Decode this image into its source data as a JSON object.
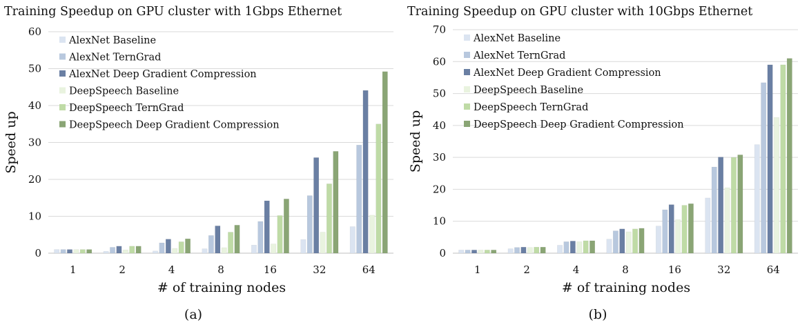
{
  "chart_data": [
    {
      "type": "bar",
      "title": "Training Speedup on GPU cluster with 1Gbps Ethernet",
      "caption": "(a)",
      "xlabel": "# of training nodes",
      "ylabel": "Speed up",
      "ylim": [
        0,
        60
      ],
      "yticks": [
        "0",
        "10",
        "20",
        "30",
        "40",
        "50",
        "60"
      ],
      "categories": [
        "1",
        "2",
        "4",
        "8",
        "16",
        "32",
        "64"
      ],
      "grid": "horizontal",
      "legend": "top-left",
      "series": [
        {
          "name": "AlexNet Baseline",
          "color": "#dbe4f1",
          "values": [
            1,
            0.5,
            0.6,
            1.2,
            2.2,
            3.7,
            7.2
          ]
        },
        {
          "name": "AlexNet TernGrad",
          "color": "#b8c8de",
          "values": [
            1,
            1.6,
            2.8,
            4.8,
            8.6,
            15.6,
            29.3
          ]
        },
        {
          "name": "AlexNet Deep Gradient Compression",
          "color": "#6a7fa3",
          "values": [
            1,
            1.9,
            3.8,
            7.4,
            14.2,
            25.9,
            44.1
          ]
        },
        {
          "name": "DeepSpeech Baseline",
          "color": "#e9f3df",
          "values": [
            1,
            0.9,
            1.3,
            1.5,
            2.5,
            5.7,
            10.3
          ]
        },
        {
          "name": "DeepSpeech TernGrad",
          "color": "#bfdba6",
          "values": [
            1,
            1.9,
            3.1,
            5.7,
            10.2,
            18.8,
            35.0
          ]
        },
        {
          "name": "DeepSpeech Deep Gradient Compression",
          "color": "#8aa575",
          "values": [
            1,
            1.9,
            3.9,
            7.6,
            14.7,
            27.6,
            49.2
          ]
        }
      ]
    },
    {
      "type": "bar",
      "title": "Training Speedup on GPU cluster with 10Gbps Ethernet",
      "caption": "(b)",
      "xlabel": "# of training nodes",
      "ylabel": "Speed up",
      "ylim": [
        0,
        70
      ],
      "yticks": [
        "0",
        "10",
        "20",
        "30",
        "40",
        "50",
        "60",
        "70"
      ],
      "categories": [
        "1",
        "2",
        "4",
        "8",
        "16",
        "32",
        "64"
      ],
      "grid": "horizontal",
      "legend": "top-left",
      "series": [
        {
          "name": "AlexNet Baseline",
          "color": "#dbe4f1",
          "values": [
            1,
            1.4,
            2.5,
            4.4,
            8.5,
            17.3,
            34.0
          ]
        },
        {
          "name": "AlexNet TernGrad",
          "color": "#b8c8de",
          "values": [
            1,
            1.8,
            3.6,
            7.0,
            13.6,
            27.0,
            53.4
          ]
        },
        {
          "name": "AlexNet Deep Gradient Compression",
          "color": "#6a7fa3",
          "values": [
            1,
            1.9,
            3.8,
            7.6,
            15.2,
            30.1,
            59.0
          ]
        },
        {
          "name": "DeepSpeech Baseline",
          "color": "#e9f3df",
          "values": [
            1,
            1.8,
            3.6,
            6.7,
            10.5,
            20.5,
            42.5
          ]
        },
        {
          "name": "DeepSpeech TernGrad",
          "color": "#bfdba6",
          "values": [
            1,
            1.9,
            3.9,
            7.6,
            15.0,
            30.0,
            59.0
          ]
        },
        {
          "name": "DeepSpeech Deep Gradient Compression",
          "color": "#8aa575",
          "values": [
            1,
            1.9,
            3.9,
            7.8,
            15.5,
            30.8,
            61.0
          ]
        }
      ]
    }
  ]
}
